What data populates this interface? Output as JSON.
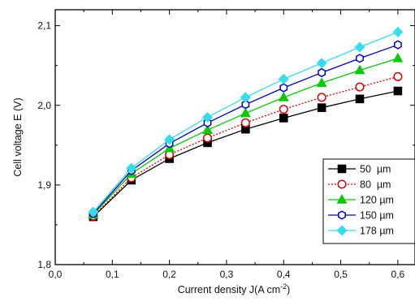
{
  "chart_data": {
    "type": "line",
    "xlabel": "Current density J(A cm",
    "xlabel_sup": "-2",
    "xlabel_end": ")",
    "ylabel": "Cell voltage E (V)",
    "xlim": [
      0.0,
      0.63
    ],
    "ylim": [
      1.8,
      2.12
    ],
    "x_ticks": [
      0.0,
      0.1,
      0.2,
      0.3,
      0.4,
      0.5,
      0.6
    ],
    "x_tick_labels": [
      "0,0",
      "0,1",
      "0,2",
      "0,3",
      "0,4",
      "0,5",
      "0,6"
    ],
    "y_ticks": [
      1.8,
      1.9,
      2.0,
      2.1
    ],
    "y_tick_labels": [
      "1,8",
      "1,9",
      "2,0",
      "2,1"
    ],
    "grid": false,
    "legend_position": "bottom-right",
    "x": [
      0.0667,
      0.1333,
      0.2,
      0.2667,
      0.3333,
      0.4,
      0.4667,
      0.5333,
      0.6
    ],
    "series": [
      {
        "name": "50  µm",
        "marker": "square-filled",
        "color": "#000000",
        "line_style": "solid",
        "values": [
          1.86,
          1.906,
          1.933,
          1.953,
          1.97,
          1.984,
          1.997,
          2.008,
          2.018
        ]
      },
      {
        "name": "80  µm",
        "marker": "circle-open",
        "color": "#e00000",
        "line_style": "dotted",
        "values": [
          1.861,
          1.909,
          1.938,
          1.959,
          1.978,
          1.995,
          2.01,
          2.023,
          2.036
        ]
      },
      {
        "name": "120 µm",
        "marker": "triangle-filled",
        "color": "#00cc00",
        "line_style": "solid",
        "values": [
          1.863,
          1.914,
          1.946,
          1.969,
          1.99,
          2.01,
          2.028,
          2.044,
          2.059
        ]
      },
      {
        "name": "150 µm",
        "marker": "hexagon-open",
        "color": "#0000cc",
        "line_style": "solid",
        "values": [
          1.864,
          1.918,
          1.952,
          1.978,
          2.001,
          2.022,
          2.041,
          2.059,
          2.076
        ]
      },
      {
        "name": "178 µm",
        "marker": "diamond-filled",
        "color": "#33ddee",
        "line_style": "solid",
        "values": [
          1.866,
          1.921,
          1.957,
          1.985,
          2.01,
          2.033,
          2.053,
          2.073,
          2.092
        ]
      }
    ]
  }
}
